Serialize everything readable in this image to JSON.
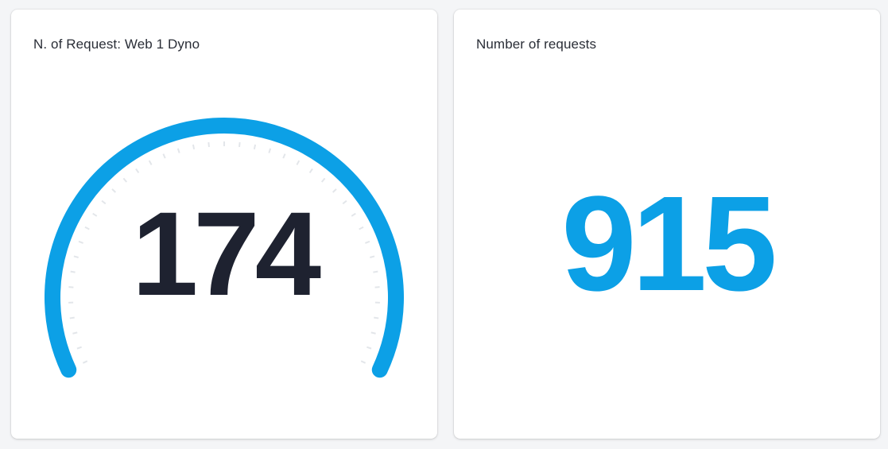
{
  "panels": {
    "gauge": {
      "title": "N. of Request: Web 1 Dyno",
      "value": "174",
      "value_color": "#1e2230",
      "arc_color": "#0ca0e6",
      "tick_color": "#e3e6ea"
    },
    "stat": {
      "title": "Number of requests",
      "value": "915",
      "value_color": "#0ca0e6"
    }
  }
}
